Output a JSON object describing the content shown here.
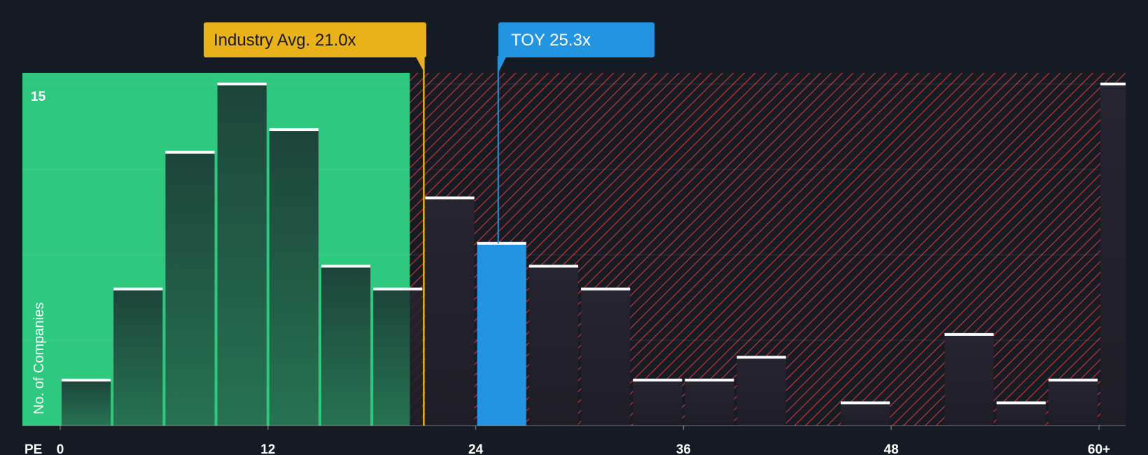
{
  "chart_data": {
    "type": "bar",
    "title": "",
    "xlabel": "PE",
    "ylabel": "No. of Companies",
    "x_tick_labels": [
      "0",
      "12",
      "24",
      "36",
      "48",
      "60+"
    ],
    "x_tick_values": [
      0,
      12,
      24,
      36,
      48,
      60
    ],
    "y_tick_labels": [
      "15"
    ],
    "y_tick_values": [
      15
    ],
    "xlim": [
      -2.2,
      62
    ],
    "ylim": [
      0,
      15.5
    ],
    "bin_width": 3,
    "bins": [
      {
        "start": 0,
        "value": 2
      },
      {
        "start": 3,
        "value": 6
      },
      {
        "start": 6,
        "value": 12
      },
      {
        "start": 9,
        "value": 15
      },
      {
        "start": 12,
        "value": 13
      },
      {
        "start": 15,
        "value": 7
      },
      {
        "start": 18,
        "value": 6
      },
      {
        "start": 21,
        "value": 10
      },
      {
        "start": 24,
        "value": 8,
        "highlight": true
      },
      {
        "start": 27,
        "value": 7
      },
      {
        "start": 30,
        "value": 6
      },
      {
        "start": 33,
        "value": 2
      },
      {
        "start": 36,
        "value": 2
      },
      {
        "start": 39,
        "value": 3
      },
      {
        "start": 45,
        "value": 1
      },
      {
        "start": 51,
        "value": 4
      },
      {
        "start": 54,
        "value": 1
      },
      {
        "start": 57,
        "value": 2
      },
      {
        "start": 60,
        "value": 15
      }
    ],
    "fair_region_end": 20.2,
    "industry_avg": {
      "label": "Industry Avg. 21.0x",
      "value": 21.0
    },
    "company": {
      "label": "TOY 25.3x",
      "value": 25.3
    },
    "colors": {
      "background": "#151b24",
      "fair_fill": "#2ec87e",
      "fair_bar": "#1e4a3e",
      "over_bar": "#25222c",
      "hatch": "#c8343c",
      "company_bar": "#2394e0",
      "industry_callout": "#e9b21a",
      "company_callout": "#2394e0",
      "bar_cap": "#ffffff"
    }
  }
}
